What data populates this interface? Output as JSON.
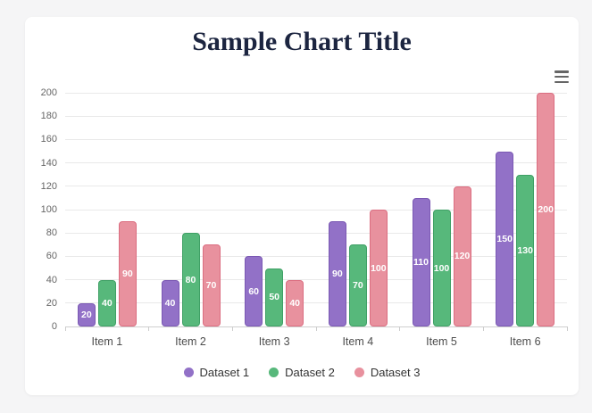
{
  "page": {
    "background_color": "#f5f5f6",
    "card_color": "#ffffff"
  },
  "header": {
    "menu_icon": "hamburger-icon",
    "menu_icon_color": "#666666"
  },
  "chart_data": {
    "type": "bar",
    "title": "Sample Chart Title",
    "title_color": "#1c2540",
    "xlabel": "",
    "ylabel": "",
    "categories": [
      "Item 1",
      "Item 2",
      "Item 3",
      "Item 4",
      "Item 5",
      "Item 6"
    ],
    "series": [
      {
        "name": "Dataset 1",
        "values": [
          20,
          40,
          60,
          90,
          110,
          150
        ],
        "fill": "#9271c7",
        "border": "#7a58b3"
      },
      {
        "name": "Dataset 2",
        "values": [
          40,
          80,
          50,
          70,
          100,
          130
        ],
        "fill": "#57b87b",
        "border": "#3fa065"
      },
      {
        "name": "Dataset 3",
        "values": [
          90,
          70,
          40,
          100,
          120,
          200
        ],
        "fill": "#e8919e",
        "border": "#db6d80"
      }
    ],
    "ylim": [
      0,
      200
    ],
    "yticks": [
      0,
      20,
      40,
      60,
      80,
      100,
      120,
      140,
      160,
      180,
      200
    ],
    "grid": true,
    "grid_color": "#e9e9e9",
    "axis_line_color": "#cfcfcf",
    "value_labels": "inside bars, white, vertically centered",
    "legend_position": "bottom"
  }
}
